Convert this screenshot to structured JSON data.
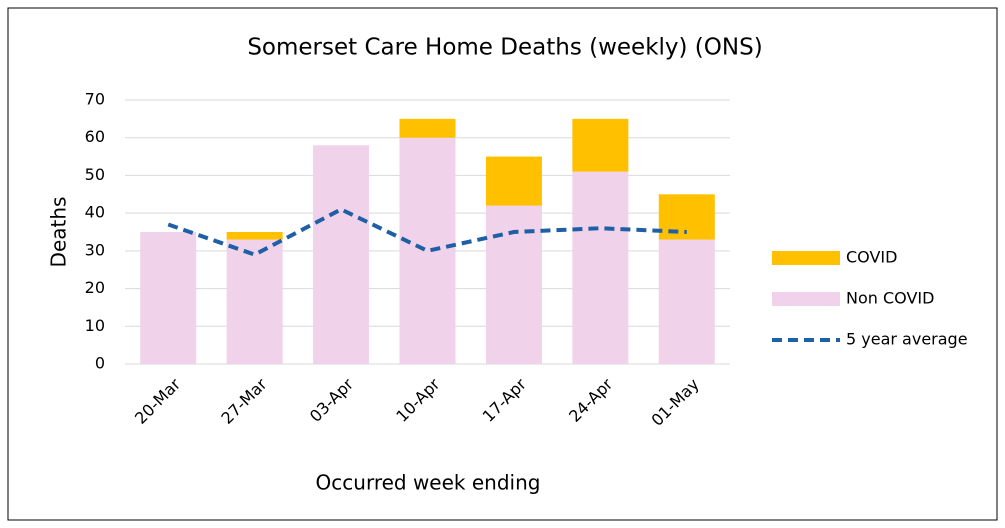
{
  "chart_data": {
    "type": "bar",
    "stacked": true,
    "title": "Somerset Care Home Deaths (weekly) (ONS)",
    "x_label": "Occurred week ending",
    "y_label": "Deaths",
    "categories": [
      "20-Mar",
      "27-Mar",
      "03-Apr",
      "10-Apr",
      "17-Apr",
      "24-Apr",
      "01-May"
    ],
    "series": [
      {
        "name": "COVID",
        "type": "bar",
        "color": "#ffc000",
        "values": [
          0,
          2,
          0,
          5,
          13,
          14,
          12
        ]
      },
      {
        "name": "Non COVID",
        "type": "bar",
        "color": "#f0d2ea",
        "values": [
          35,
          33,
          58,
          60,
          42,
          51,
          33
        ]
      },
      {
        "name": "5 year average",
        "type": "line",
        "color": "#1f5fa6",
        "dashed": true,
        "values": [
          37,
          29,
          41,
          30,
          35,
          36,
          35
        ]
      }
    ],
    "ylim": [
      0,
      70
    ],
    "yticks": [
      0,
      10,
      20,
      30,
      40,
      50,
      60,
      70
    ],
    "grid": true,
    "legend": "right"
  }
}
